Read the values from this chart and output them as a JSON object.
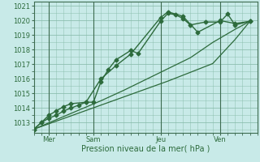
{
  "title": "",
  "xlabel": "Pression niveau de la mer( hPa )",
  "ylabel": "",
  "bg_color": "#c8eae8",
  "grid_color": "#88bbaa",
  "line_color": "#2d6b3c",
  "ylim": [
    1012.3,
    1021.3
  ],
  "xlim": [
    0,
    14.5
  ],
  "yticks": [
    1013,
    1014,
    1015,
    1016,
    1017,
    1018,
    1019,
    1020,
    1021
  ],
  "xtick_positions": [
    1.0,
    4.0,
    8.5,
    12.5
  ],
  "xtick_labels": [
    "Mer",
    "Sam",
    "Jeu",
    "Ven"
  ],
  "vline_positions": [
    1.0,
    4.0,
    8.5,
    12.5
  ],
  "series": [
    {
      "x": [
        0,
        0.5,
        1.0,
        1.5,
        2.0,
        2.5,
        3.0,
        3.5,
        4.0,
        4.5,
        5.0,
        5.5,
        6.5,
        7.0,
        8.5,
        9.0,
        9.5,
        10.0,
        10.5,
        11.5,
        12.5,
        13.0,
        13.5,
        14.5
      ],
      "y": [
        1012.55,
        1013.0,
        1013.3,
        1013.5,
        1013.8,
        1014.0,
        1014.2,
        1014.4,
        1014.4,
        1015.8,
        1016.65,
        1017.3,
        1017.95,
        1017.75,
        1019.95,
        1020.5,
        1020.4,
        1020.15,
        1019.7,
        1019.9,
        1019.9,
        1020.45,
        1019.7,
        1019.95
      ],
      "marker": "D",
      "markersize": 2.5,
      "linewidth": 1.0
    },
    {
      "x": [
        0,
        0.5,
        1.0,
        1.5,
        2.0,
        2.5,
        3.5,
        4.5,
        5.5,
        6.5,
        8.5,
        9.0,
        10.0,
        11.0,
        12.5,
        13.5,
        14.5
      ],
      "y": [
        1012.55,
        1013.0,
        1013.5,
        1013.8,
        1014.1,
        1014.3,
        1014.4,
        1016.0,
        1016.9,
        1017.7,
        1020.2,
        1020.6,
        1020.3,
        1019.2,
        1020.0,
        1019.8,
        1019.95
      ],
      "marker": "D",
      "markersize": 2.5,
      "linewidth": 1.0
    },
    {
      "x": [
        0,
        1.5,
        3.0,
        4.5,
        6.0,
        7.5,
        9.0,
        10.5,
        12.0,
        13.5,
        14.5
      ],
      "y": [
        1012.55,
        1013.2,
        1013.85,
        1014.5,
        1015.2,
        1015.95,
        1016.7,
        1017.45,
        1018.5,
        1019.4,
        1019.95
      ],
      "marker": null,
      "markersize": 0,
      "linewidth": 0.9
    },
    {
      "x": [
        0,
        1.5,
        3.0,
        4.5,
        6.0,
        7.5,
        9.0,
        10.5,
        12.0,
        13.5,
        14.5
      ],
      "y": [
        1012.55,
        1013.1,
        1013.65,
        1014.2,
        1014.75,
        1015.3,
        1015.85,
        1016.45,
        1017.05,
        1018.7,
        1019.95
      ],
      "marker": null,
      "markersize": 0,
      "linewidth": 0.9
    }
  ]
}
